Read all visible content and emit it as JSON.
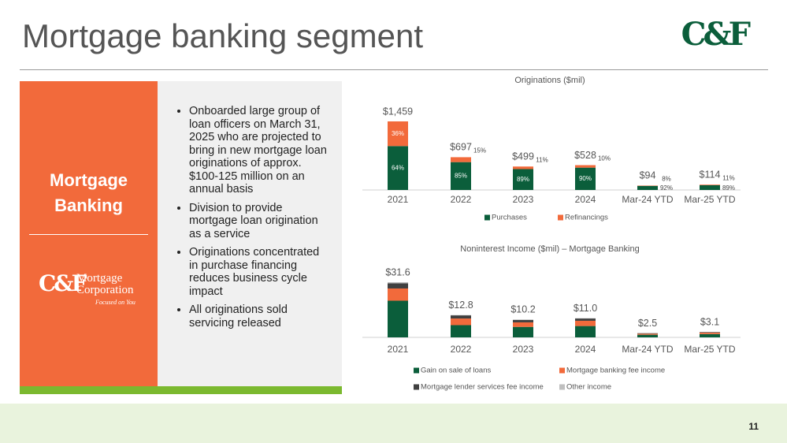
{
  "header": {
    "title": "Mortgage banking segment",
    "logo": "C&F"
  },
  "sidebar": {
    "heading": "Mortgage Banking",
    "logo_mark": "C&F",
    "logo_line1": "Mortgage",
    "logo_line2": "Corporation",
    "logo_tagline": "Focused on You"
  },
  "bullets": [
    "Onboarded large group of loan officers on March 31, 2025 who are projected to bring in new mortgage loan originations of approx. $100-125 million on an annual basis",
    "Division to provide mortgage loan origination as a service",
    "Originations concentrated in purchase financing reduces business cycle impact",
    "All originations sold servicing released"
  ],
  "page_number": "11",
  "chart_data": [
    {
      "type": "bar",
      "stacked": "percent",
      "title": "Originations ($mil)",
      "categories": [
        "2021",
        "2022",
        "2023",
        "2024",
        "Mar-24 YTD",
        "Mar-25 YTD"
      ],
      "totals": [
        1459,
        697,
        499,
        528,
        94,
        114
      ],
      "total_labels": [
        "$1,459",
        "$697",
        "$499",
        "$528",
        "$94",
        "$114"
      ],
      "series": [
        {
          "name": "Purchases",
          "color": "#0b5e3b",
          "values": [
            64,
            85,
            89,
            90,
            92,
            89
          ],
          "value_labels": [
            "64%",
            "85%",
            "89%",
            "90%",
            "92%",
            "89%"
          ]
        },
        {
          "name": "Refinancings",
          "color": "#f26a3b",
          "values": [
            36,
            15,
            11,
            10,
            8,
            11
          ],
          "value_labels": [
            "36%",
            "15%",
            "11%",
            "10%",
            "8%",
            "11%"
          ]
        }
      ]
    },
    {
      "type": "bar",
      "stacked": "value",
      "title": "Noninterest Income ($mil) – Mortgage Banking",
      "categories": [
        "2021",
        "2022",
        "2023",
        "2024",
        "Mar-24 YTD",
        "Mar-25 YTD"
      ],
      "totals": [
        31.6,
        12.8,
        10.2,
        11.0,
        2.5,
        3.1
      ],
      "total_labels": [
        "$31.6",
        "$12.8",
        "$10.2",
        "$11.0",
        "$2.5",
        "$3.1"
      ],
      "series": [
        {
          "name": "Gain on sale of loans",
          "color": "#0b5e3b",
          "values": [
            21.0,
            7.0,
            6.0,
            6.5,
            1.5,
            1.9
          ]
        },
        {
          "name": "Mortgage banking fee income",
          "color": "#f26a3b",
          "values": [
            7.0,
            3.8,
            2.6,
            3.0,
            0.6,
            0.8
          ]
        },
        {
          "name": "Mortgage lender services fee income",
          "color": "#404040",
          "values": [
            3.0,
            1.8,
            1.4,
            1.3,
            0.3,
            0.3
          ]
        },
        {
          "name": "Other income",
          "color": "#bfbfbf",
          "values": [
            0.6,
            0.2,
            0.2,
            0.2,
            0.1,
            0.1
          ]
        }
      ]
    }
  ]
}
